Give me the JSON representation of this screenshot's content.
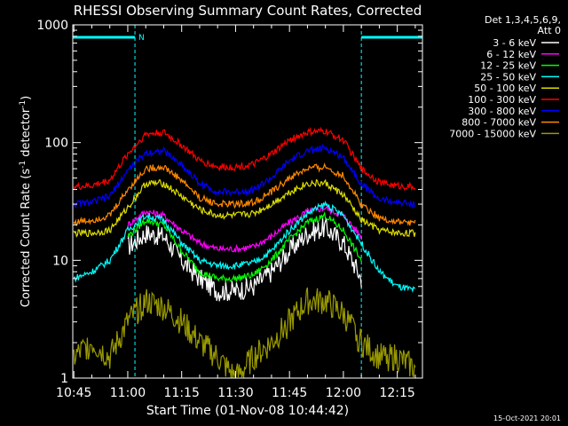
{
  "chart_data": {
    "type": "line",
    "title": "RHESSI Observing Summary Count Rates, Corrected",
    "xlabel": "Start Time (01-Nov-08 10:44:42)",
    "ylabel_main": "Corrected Count Rate (s",
    "ylabel_exp1": "-1",
    "ylabel_mid": " detector",
    "ylabel_exp2": "-1",
    "ylabel_end": ")",
    "y_scale": "log",
    "xlim": [
      "10:44",
      "12:22"
    ],
    "ylim": [
      1,
      1000
    ],
    "x_ticks": [
      "10:45",
      "11:00",
      "11:15",
      "11:30",
      "11:45",
      "12:00",
      "12:15"
    ],
    "y_ticks": [
      "1",
      "10",
      "100",
      "1000"
    ],
    "grid": false,
    "legend_position": "top-right",
    "legend_header": [
      "Det 1,3,4,5,6,9,",
      "Att 0"
    ],
    "footer_date": "15-Oct-2021 20:01",
    "night_label": "N",
    "night_color": "#00ffff",
    "spans": [
      {
        "type": "night",
        "start": "10:44",
        "end": "11:02"
      },
      {
        "type": "night",
        "start": "12:05",
        "end": "12:22"
      }
    ],
    "series": [
      {
        "name": "3 - 6 keV",
        "color": "#ffffff",
        "x": [
          "11:00",
          "11:05",
          "11:10",
          "11:15",
          "11:20",
          "11:25",
          "11:30",
          "11:35",
          "11:40",
          "11:45",
          "11:50",
          "11:55",
          "12:00",
          "12:05"
        ],
        "values": [
          13,
          17,
          16,
          10,
          7,
          5.5,
          5.5,
          6,
          8,
          12,
          17,
          19,
          14,
          7
        ]
      },
      {
        "name": "6 - 12 keV",
        "color": "#ff00ff",
        "x": [
          "11:00",
          "11:05",
          "11:10",
          "11:15",
          "11:20",
          "11:25",
          "11:30",
          "11:35",
          "11:40",
          "11:45",
          "11:50",
          "11:55",
          "12:00",
          "12:05"
        ],
        "values": [
          20,
          26,
          24,
          18,
          14,
          12.5,
          12.5,
          13,
          16,
          21,
          26,
          28,
          24,
          16
        ]
      },
      {
        "name": "12 - 25 keV",
        "color": "#00ff00",
        "x": [
          "11:00",
          "11:05",
          "11:10",
          "11:15",
          "11:20",
          "11:25",
          "11:30",
          "11:35",
          "11:40",
          "11:45",
          "11:50",
          "11:55",
          "12:00",
          "12:05"
        ],
        "values": [
          16,
          22,
          20,
          12,
          8,
          7,
          7,
          7.5,
          10,
          15,
          21,
          24,
          18,
          10
        ]
      },
      {
        "name": "25 - 50 keV",
        "color": "#00ffff",
        "x": [
          "10:45",
          "10:50",
          "10:55",
          "11:00",
          "11:05",
          "11:10",
          "11:15",
          "11:20",
          "11:25",
          "11:30",
          "11:35",
          "11:40",
          "11:45",
          "11:50",
          "11:55",
          "12:00",
          "12:05",
          "12:10",
          "12:15",
          "12:20"
        ],
        "values": [
          7,
          8,
          10,
          18,
          24,
          22,
          14,
          10,
          9,
          9,
          9.5,
          12,
          18,
          25,
          30,
          24,
          14,
          8,
          6,
          5.5
        ]
      },
      {
        "name": "50 - 100 keV",
        "color": "#dddd00",
        "x": [
          "10:45",
          "10:50",
          "10:55",
          "11:00",
          "11:05",
          "11:10",
          "11:15",
          "11:20",
          "11:25",
          "11:30",
          "11:35",
          "11:40",
          "11:45",
          "11:50",
          "11:55",
          "12:00",
          "12:05",
          "12:10",
          "12:15",
          "12:20"
        ],
        "values": [
          17,
          17,
          18,
          28,
          45,
          45,
          35,
          27,
          24,
          24,
          25,
          30,
          38,
          45,
          45,
          36,
          22,
          18,
          17,
          17
        ]
      },
      {
        "name": "100 - 300 keV",
        "color": "#ff0000",
        "x": [
          "10:45",
          "10:50",
          "10:55",
          "11:00",
          "11:05",
          "11:10",
          "11:15",
          "11:20",
          "11:25",
          "11:30",
          "11:35",
          "11:40",
          "11:45",
          "11:50",
          "11:55",
          "12:00",
          "12:05",
          "12:10",
          "12:15",
          "12:20"
        ],
        "values": [
          42,
          43,
          48,
          80,
          118,
          122,
          95,
          70,
          62,
          62,
          65,
          80,
          105,
          122,
          125,
          105,
          60,
          46,
          43,
          42
        ]
      },
      {
        "name": "300 - 800 keV",
        "color": "#0000ff",
        "x": [
          "10:45",
          "10:50",
          "10:55",
          "11:00",
          "11:05",
          "11:10",
          "11:15",
          "11:20",
          "11:25",
          "11:30",
          "11:35",
          "11:40",
          "11:45",
          "11:50",
          "11:55",
          "12:00",
          "12:05",
          "12:10",
          "12:15",
          "12:20"
        ],
        "values": [
          30,
          31,
          35,
          58,
          82,
          85,
          65,
          45,
          38,
          38,
          40,
          50,
          70,
          85,
          90,
          75,
          45,
          33,
          31,
          30
        ]
      },
      {
        "name": "800 - 7000 keV",
        "color": "#ff8800",
        "x": [
          "10:45",
          "10:50",
          "10:55",
          "11:00",
          "11:05",
          "11:10",
          "11:15",
          "11:20",
          "11:25",
          "11:30",
          "11:35",
          "11:40",
          "11:45",
          "11:50",
          "11:55",
          "12:00",
          "12:05",
          "12:10",
          "12:15",
          "12:20"
        ],
        "values": [
          21,
          22,
          24,
          40,
          60,
          62,
          48,
          34,
          30,
          30,
          31,
          38,
          50,
          60,
          62,
          52,
          30,
          23,
          21,
          21
        ]
      },
      {
        "name": "7000 - 15000 keV",
        "color": "#999900",
        "x": [
          "10:45",
          "10:50",
          "10:55",
          "11:00",
          "11:05",
          "11:10",
          "11:15",
          "11:20",
          "11:25",
          "11:30",
          "11:35",
          "11:40",
          "11:45",
          "11:50",
          "11:55",
          "12:00",
          "12:05",
          "12:10",
          "12:15",
          "12:20"
        ],
        "values": [
          1.5,
          2,
          1.5,
          3,
          4.5,
          4,
          3,
          2,
          1.5,
          1,
          1.5,
          2,
          3,
          4.5,
          4.5,
          3.5,
          2,
          1.5,
          1.5,
          1.2
        ]
      }
    ]
  }
}
